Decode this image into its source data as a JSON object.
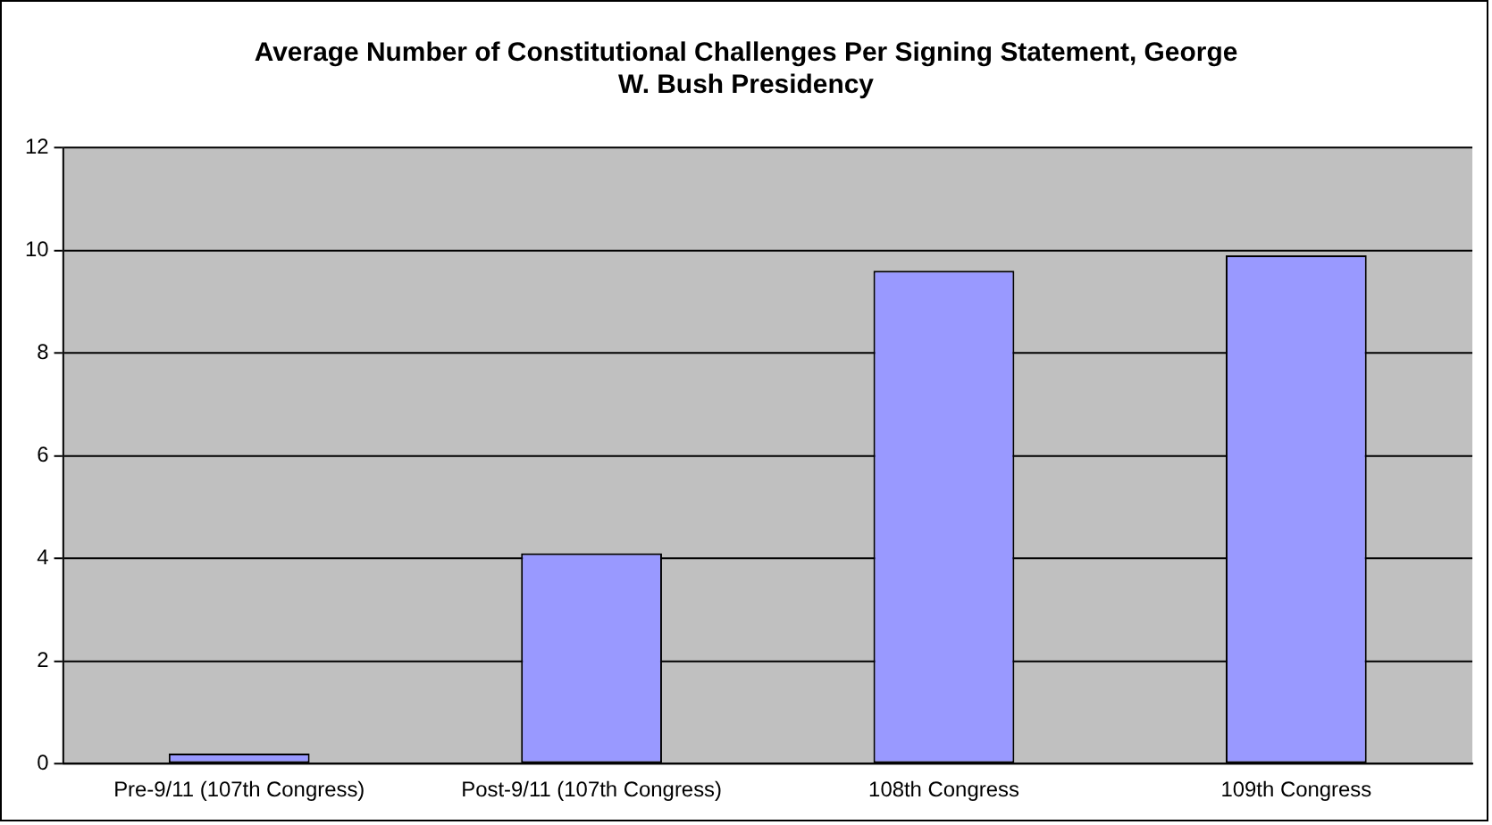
{
  "chart_data": {
    "type": "bar",
    "title": "Average Number of Constitutional Challenges Per Signing Statement, George W. Bush Presidency",
    "categories": [
      "Pre-9/11 (107th Congress)",
      "Post-9/11 (107th Congress)",
      "108th Congress",
      "109th Congress"
    ],
    "values": [
      0.2,
      4.1,
      9.6,
      9.9
    ],
    "color": "#9999ff",
    "ylim": [
      0,
      12
    ],
    "yticks": [
      0,
      2,
      4,
      6,
      8,
      10,
      12
    ],
    "grid": "y",
    "legend": false
  }
}
